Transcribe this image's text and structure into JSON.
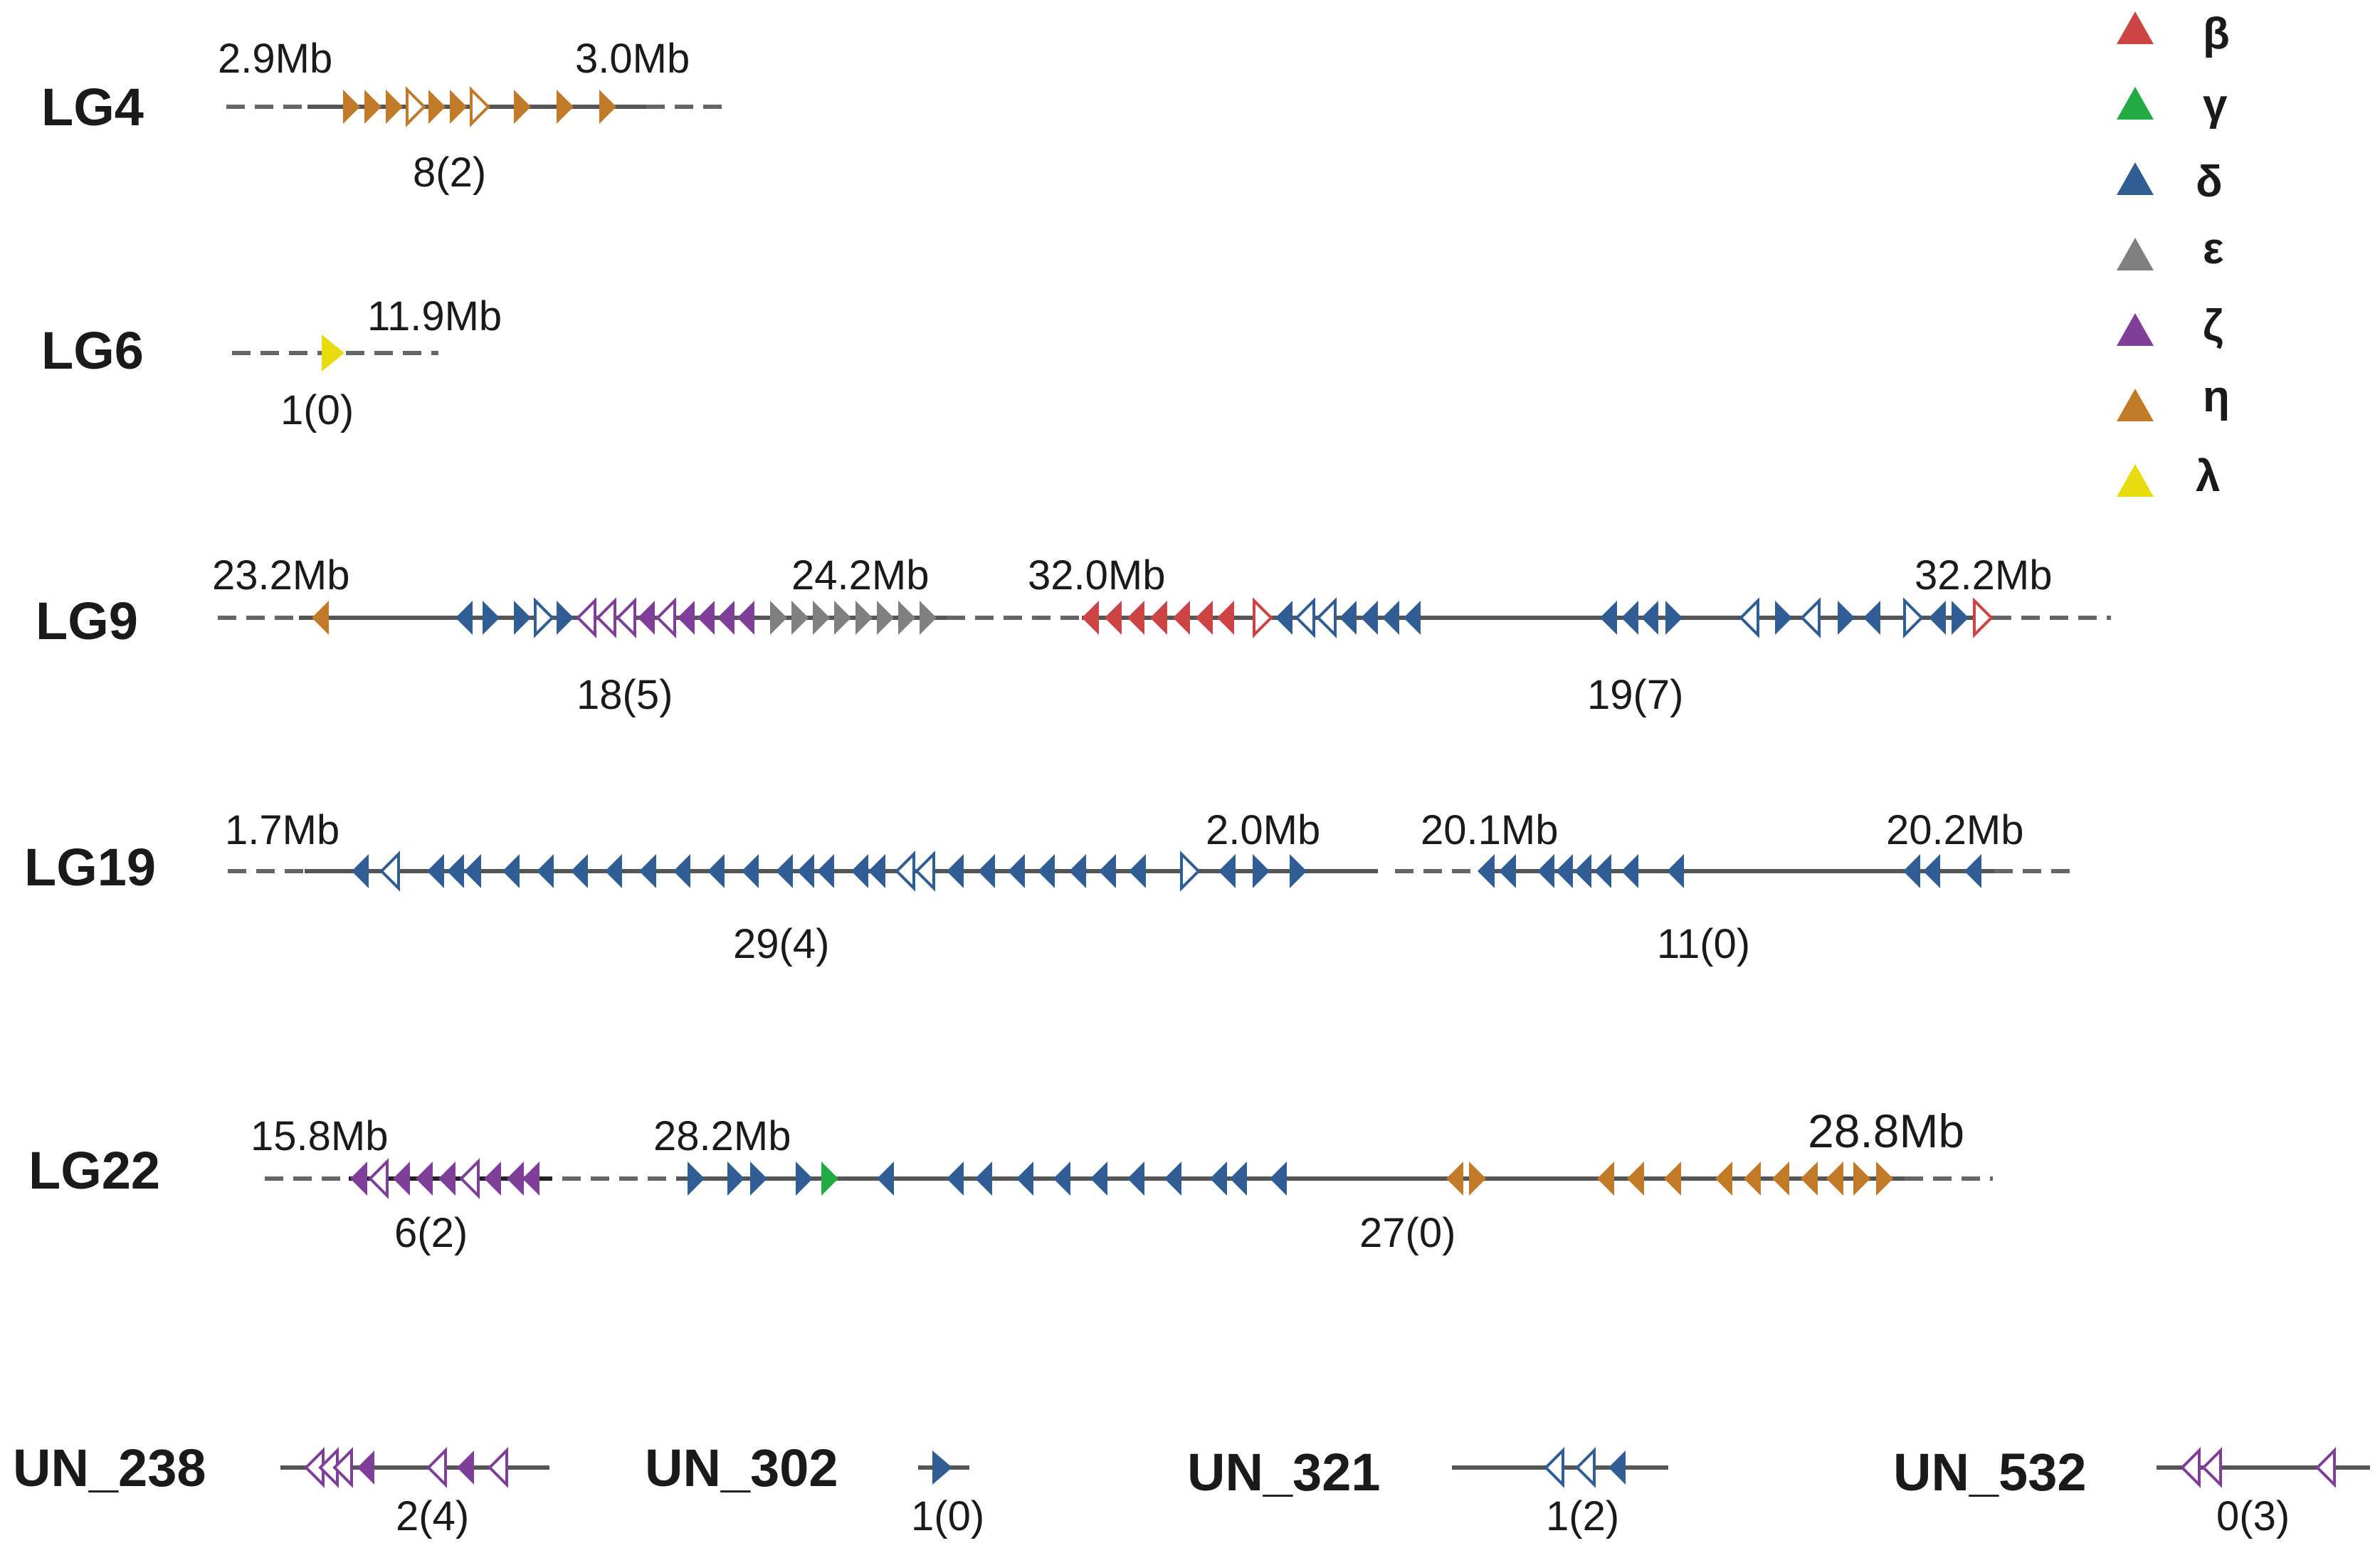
{
  "legend": [
    {
      "symbol": "β",
      "color": "#cc4444"
    },
    {
      "symbol": "γ",
      "color": "#22aa44"
    },
    {
      "symbol": "δ",
      "color": "#2f5d94"
    },
    {
      "symbol": "ε",
      "color": "#808080"
    },
    {
      "symbol": "ζ",
      "color": "#7f3f98"
    },
    {
      "symbol": "η",
      "color": "#c07a28"
    },
    {
      "symbol": "λ",
      "color": "#e8dc10"
    }
  ],
  "groups": {
    "lg4": {
      "name": "LG4",
      "pos": [
        "2.9Mb",
        "3.0Mb"
      ],
      "count": "8(2)"
    },
    "lg6": {
      "name": "LG6",
      "pos": [
        "11.9Mb"
      ],
      "count": "1(0)"
    },
    "lg9": {
      "name": "LG9",
      "pos": [
        "23.2Mb",
        "24.2Mb",
        "32.0Mb",
        "32.2Mb"
      ],
      "counts": [
        "18(5)",
        "19(7)"
      ]
    },
    "lg19": {
      "name": "LG19",
      "pos": [
        "1.7Mb",
        "2.0Mb",
        "20.1Mb",
        "20.2Mb"
      ],
      "counts": [
        "29(4)",
        "11(0)"
      ]
    },
    "lg22": {
      "name": "LG22",
      "pos": [
        "15.8Mb",
        "28.2Mb",
        "28.8Mb"
      ],
      "counts": [
        "6(2)",
        "27(0)"
      ]
    },
    "un238": {
      "name": "UN_238",
      "count": "2(4)"
    },
    "un302": {
      "name": "UN_302",
      "count": "1(0)"
    },
    "un321": {
      "name": "UN_321",
      "count": "1(2)"
    },
    "un532": {
      "name": "UN_532",
      "count": "0(3)"
    }
  }
}
